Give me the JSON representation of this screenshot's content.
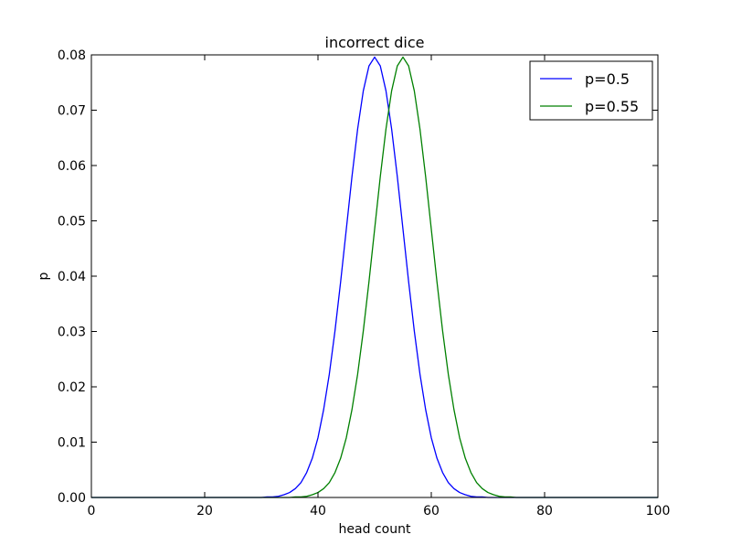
{
  "chart_data": {
    "type": "line",
    "title": "incorrect dice",
    "xlabel": "head count",
    "ylabel": "p",
    "xlim": [
      0,
      100
    ],
    "ylim": [
      0,
      0.08
    ],
    "xticks": [
      0,
      20,
      40,
      60,
      80,
      100
    ],
    "xtick_labels": [
      "0",
      "20",
      "40",
      "60",
      "80",
      "100"
    ],
    "yticks": [
      0,
      0.01,
      0.02,
      0.03,
      0.04,
      0.05,
      0.06,
      0.07,
      0.08
    ],
    "ytick_labels": [
      "0.00",
      "0.01",
      "0.02",
      "0.03",
      "0.04",
      "0.05",
      "0.06",
      "0.07",
      "0.08"
    ],
    "grid": false,
    "legend_position": "top-right",
    "series": [
      {
        "name": "p=0.5",
        "color": "#0000ff",
        "x": [
          0,
          30,
          31,
          32,
          33,
          34,
          35,
          36,
          37,
          38,
          39,
          40,
          41,
          42,
          43,
          44,
          45,
          46,
          47,
          48,
          49,
          50,
          51,
          52,
          53,
          54,
          55,
          56,
          57,
          58,
          59,
          60,
          61,
          62,
          63,
          64,
          65,
          66,
          67,
          68,
          69,
          70,
          100
        ],
        "y": [
          0,
          0.0,
          0.0001,
          0.0001,
          0.0002,
          0.0005,
          0.0009,
          0.0016,
          0.0027,
          0.0045,
          0.0071,
          0.0108,
          0.0159,
          0.0223,
          0.0301,
          0.039,
          0.0485,
          0.058,
          0.0666,
          0.0735,
          0.078,
          0.0796,
          0.078,
          0.0735,
          0.0666,
          0.058,
          0.0485,
          0.039,
          0.0301,
          0.0223,
          0.0159,
          0.0108,
          0.0071,
          0.0045,
          0.0027,
          0.0016,
          0.0009,
          0.0005,
          0.0002,
          0.0001,
          0.0001,
          0.0,
          0
        ]
      },
      {
        "name": "p=0.55",
        "color": "#008000",
        "x": [
          0,
          35,
          36,
          37,
          38,
          39,
          40,
          41,
          42,
          43,
          44,
          45,
          46,
          47,
          48,
          49,
          50,
          51,
          52,
          53,
          54,
          55,
          56,
          57,
          58,
          59,
          60,
          61,
          62,
          63,
          64,
          65,
          66,
          67,
          68,
          69,
          70,
          71,
          72,
          73,
          74,
          75,
          100
        ],
        "y": [
          0,
          0.0,
          0.0001,
          0.0001,
          0.0002,
          0.0005,
          0.0009,
          0.0016,
          0.0027,
          0.0045,
          0.0071,
          0.0108,
          0.0159,
          0.0223,
          0.0301,
          0.039,
          0.0485,
          0.058,
          0.0666,
          0.0735,
          0.078,
          0.0796,
          0.078,
          0.0735,
          0.0666,
          0.058,
          0.0485,
          0.039,
          0.0301,
          0.0223,
          0.0159,
          0.0108,
          0.0071,
          0.0045,
          0.0027,
          0.0016,
          0.0009,
          0.0005,
          0.0002,
          0.0001,
          0.0001,
          0.0,
          0
        ]
      }
    ]
  }
}
